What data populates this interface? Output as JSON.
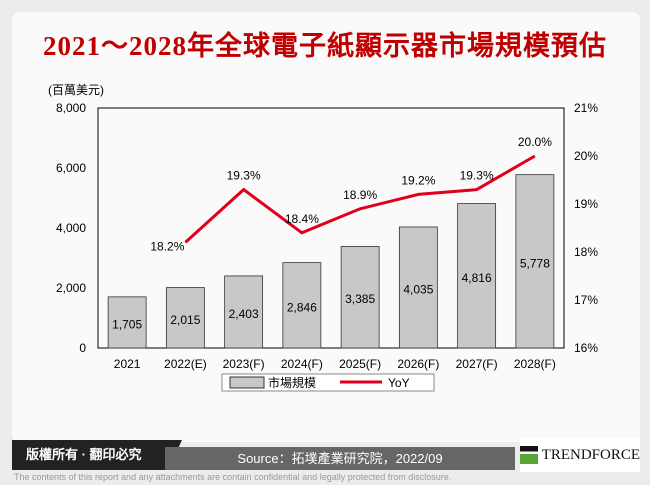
{
  "title": "2021～2028年全球電子紙顯示器市場規模預估",
  "chart_data": {
    "type": "bar+line",
    "title": "2021～2028年全球電子紙顯示器市場規模預估",
    "ylabel": "(百萬美元)",
    "categories": [
      "2021",
      "2022(E)",
      "2023(F)",
      "2024(F)",
      "2025(F)",
      "2026(F)",
      "2027(F)",
      "2028(F)"
    ],
    "series": [
      {
        "name": "市場規模",
        "type": "bar",
        "axis": "left",
        "color": "#c8c8c8",
        "values": [
          1705,
          2015,
          2403,
          2846,
          3385,
          4035,
          4816,
          5778
        ],
        "labels": [
          "1,705",
          "2,015",
          "2,403",
          "2,846",
          "3,385",
          "4,035",
          "4,816",
          "5,778"
        ]
      },
      {
        "name": "YoY",
        "type": "line",
        "axis": "right",
        "color": "#e0001b",
        "values": [
          null,
          18.2,
          19.3,
          18.4,
          18.9,
          19.2,
          19.3,
          20.0
        ],
        "labels": [
          "",
          "18.2%",
          "19.3%",
          "18.4%",
          "18.9%",
          "19.2%",
          "19.3%",
          "20.0%"
        ]
      }
    ],
    "ylim": [
      0,
      8000
    ],
    "yticks": [
      "0",
      "2,000",
      "4,000",
      "6,000",
      "8,000"
    ],
    "y2lim": [
      16,
      21
    ],
    "y2ticks": [
      "16%",
      "17%",
      "18%",
      "19%",
      "20%",
      "21%"
    ],
    "legend": "bottom"
  },
  "footer": {
    "copyright": "版權所有 · 翻印必究",
    "source": "Source：拓墣產業研究院，2022/09",
    "brand": "TRENDFORCE",
    "disclaimer": "The contents of this report and any attachments are contain confidential and legally protected from disclosure."
  }
}
